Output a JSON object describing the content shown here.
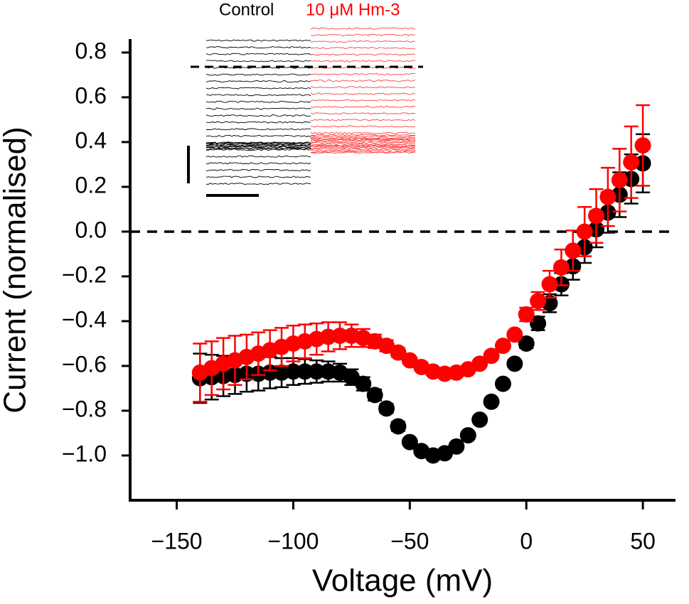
{
  "chart_data": {
    "type": "scatter",
    "x_label": "Voltage (mV)",
    "y_label": "Current (normalised)",
    "x": [
      -140,
      -135,
      -130,
      -125,
      -120,
      -115,
      -110,
      -105,
      -100,
      -95,
      -90,
      -85,
      -80,
      -75,
      -70,
      -65,
      -60,
      -55,
      -50,
      -45,
      -40,
      -35,
      -30,
      -25,
      -20,
      -15,
      -10,
      -5,
      0,
      5,
      10,
      15,
      20,
      25,
      30,
      35,
      40,
      45,
      50
    ],
    "series": [
      {
        "name": "Control",
        "color": "#000000",
        "values": [
          -0.655,
          -0.65,
          -0.645,
          -0.64,
          -0.635,
          -0.635,
          -0.63,
          -0.63,
          -0.625,
          -0.625,
          -0.625,
          -0.625,
          -0.63,
          -0.65,
          -0.68,
          -0.73,
          -0.79,
          -0.87,
          -0.94,
          -0.98,
          -1.0,
          -0.99,
          -0.96,
          -0.91,
          -0.84,
          -0.76,
          -0.68,
          -0.59,
          -0.5,
          -0.41,
          -0.32,
          -0.235,
          -0.155,
          -0.07,
          0.01,
          0.085,
          0.165,
          0.235,
          0.305
        ],
        "errors": [
          0.11,
          0.1,
          0.09,
          0.085,
          0.08,
          0.075,
          0.07,
          0.065,
          0.06,
          0.055,
          0.05,
          0.045,
          0.04,
          0.035,
          0.03,
          0.025,
          0.02,
          0.02,
          0.015,
          0.015,
          0.015,
          0.015,
          0.015,
          0.015,
          0.015,
          0.015,
          0.015,
          0.015,
          0.02,
          0.03,
          0.04,
          0.05,
          0.06,
          0.07,
          0.08,
          0.09,
          0.1,
          0.11,
          0.13
        ]
      },
      {
        "name": "10 μM Hm-3",
        "color": "#ff0000",
        "values": [
          -0.63,
          -0.61,
          -0.59,
          -0.575,
          -0.56,
          -0.545,
          -0.53,
          -0.515,
          -0.5,
          -0.49,
          -0.48,
          -0.47,
          -0.465,
          -0.465,
          -0.475,
          -0.49,
          -0.51,
          -0.54,
          -0.575,
          -0.605,
          -0.625,
          -0.635,
          -0.63,
          -0.615,
          -0.59,
          -0.555,
          -0.51,
          -0.46,
          -0.37,
          -0.31,
          -0.235,
          -0.16,
          -0.085,
          0.0,
          0.07,
          0.155,
          0.23,
          0.31,
          0.385
        ],
        "errors": [
          0.13,
          0.12,
          0.115,
          0.11,
          0.1,
          0.095,
          0.09,
          0.085,
          0.08,
          0.075,
          0.07,
          0.065,
          0.06,
          0.05,
          0.04,
          0.03,
          0.025,
          0.02,
          0.015,
          0.015,
          0.015,
          0.015,
          0.015,
          0.015,
          0.015,
          0.015,
          0.015,
          0.015,
          0.03,
          0.04,
          0.06,
          0.08,
          0.09,
          0.11,
          0.12,
          0.13,
          0.14,
          0.16,
          0.18
        ]
      }
    ],
    "xlim": [
      -170,
      64
    ],
    "ylim": [
      -1.2,
      0.86
    ],
    "xticks": [
      {
        "value": -150,
        "label": "−150"
      },
      {
        "value": -100,
        "label": "−100"
      },
      {
        "value": -50,
        "label": "−50"
      },
      0,
      50
    ],
    "yticks": [
      0.8,
      0.6,
      0.4,
      0.2,
      {
        "value": 0,
        "label": "0.0"
      },
      {
        "value": -0.2,
        "label": "−0.2"
      },
      {
        "value": -0.4,
        "label": "−0.4"
      },
      {
        "value": -0.6,
        "label": "−0.6"
      },
      {
        "value": -0.8,
        "label": "−0.8"
      },
      {
        "value": -1.0,
        "label": "−1.0"
      }
    ]
  }
}
